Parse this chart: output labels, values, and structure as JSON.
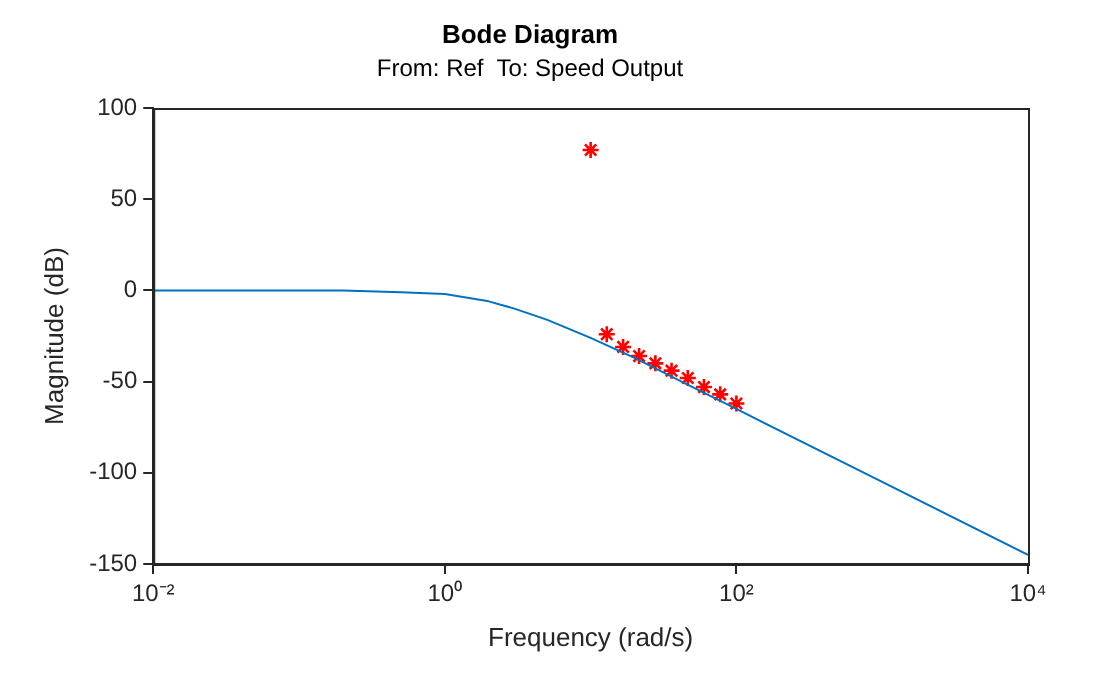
{
  "chart_data": {
    "type": "line",
    "title": "Bode Diagram",
    "subtitle": "From: Ref  To: Speed Output",
    "xlabel": "Frequency (rad/s)",
    "ylabel": "Magnitude (dB)",
    "log": "x",
    "grid": false,
    "legend": false,
    "xlim": [
      0.01,
      10000
    ],
    "xticks": [
      {
        "value": 0.01,
        "label": "10⁻²"
      },
      {
        "value": 1,
        "label": "10⁰"
      },
      {
        "value": 100,
        "label": "10²"
      },
      {
        "value": 10000,
        "label": "10⁴"
      }
    ],
    "ylim": [
      -150,
      100
    ],
    "yticks": [
      -150,
      -100,
      -50,
      0,
      50,
      100
    ],
    "series": [
      {
        "type": "line",
        "color": "#0072bd",
        "marker": "none",
        "line_style": "solid",
        "x": [
          0.01,
          0.1,
          0.2,
          0.5,
          1,
          2,
          3,
          5,
          10,
          20,
          50,
          100,
          1000,
          10000
        ],
        "values": [
          0,
          0,
          0,
          -1,
          -2,
          -6,
          -10,
          -16,
          -26,
          -37,
          -53,
          -65,
          -105,
          -145
        ]
      },
      {
        "type": "scatter",
        "color": "#ff0000",
        "marker": "cross",
        "x": [
          10,
          12.9,
          16.7,
          21.5,
          27.8,
          35.9,
          46.4,
          59.9,
          77.4,
          100
        ],
        "values": [
          77,
          -24,
          -31,
          -36,
          -40,
          -44,
          -48,
          -53,
          -57,
          -62
        ]
      }
    ]
  }
}
